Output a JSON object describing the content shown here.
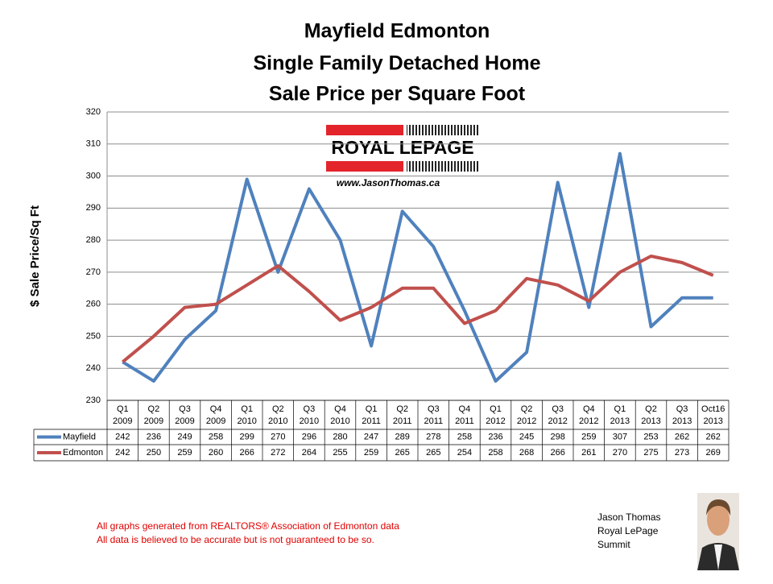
{
  "chart_data": {
    "type": "line",
    "title": [
      "Mayfield Edmonton",
      "Single Family Detached Home",
      "Sale Price per Square Foot"
    ],
    "y_label": "$ Sale Price/Sq Ft",
    "categories": [
      [
        "Q1",
        "2009"
      ],
      [
        "Q2",
        "2009"
      ],
      [
        "Q3",
        "2009"
      ],
      [
        "Q4",
        "2009"
      ],
      [
        "Q1",
        "2010"
      ],
      [
        "Q2",
        "2010"
      ],
      [
        "Q3",
        "2010"
      ],
      [
        "Q4",
        "2010"
      ],
      [
        "Q1",
        "2011"
      ],
      [
        "Q2",
        "2011"
      ],
      [
        "Q3",
        "2011"
      ],
      [
        "Q4",
        "2011"
      ],
      [
        "Q1",
        "2012"
      ],
      [
        "Q2",
        "2012"
      ],
      [
        "Q3",
        "2012"
      ],
      [
        "Q4",
        "2012"
      ],
      [
        "Q1",
        "2013"
      ],
      [
        "Q2",
        "2013"
      ],
      [
        "Q3",
        "2013"
      ],
      [
        "Oct16",
        "2013"
      ]
    ],
    "series": [
      {
        "name": "Mayfield",
        "color": "#4f81bd",
        "values": [
          242,
          236,
          249,
          258,
          299,
          270,
          296,
          280,
          247,
          289,
          278,
          258,
          236,
          245,
          298,
          259,
          307,
          253,
          262,
          262
        ]
      },
      {
        "name": "Edmonton",
        "color": "#c0504d",
        "values": [
          242,
          250,
          259,
          260,
          266,
          272,
          264,
          255,
          259,
          265,
          265,
          254,
          258,
          268,
          266,
          261,
          270,
          275,
          273,
          269
        ]
      }
    ],
    "ylim": [
      230,
      320
    ],
    "yticks": [
      230,
      240,
      250,
      260,
      270,
      280,
      290,
      300,
      310,
      320
    ],
    "grid": true,
    "logo": {
      "brand": "ROYAL LEPAGE",
      "url": "www.JasonThomas.ca"
    },
    "notes": [
      "All graphs generated from REALTORS® Association of Edmonton data",
      "All data is believed to be accurate but is not guaranteed to be so."
    ],
    "signature": [
      "Jason Thomas",
      "Royal LePage",
      "Summit"
    ]
  }
}
